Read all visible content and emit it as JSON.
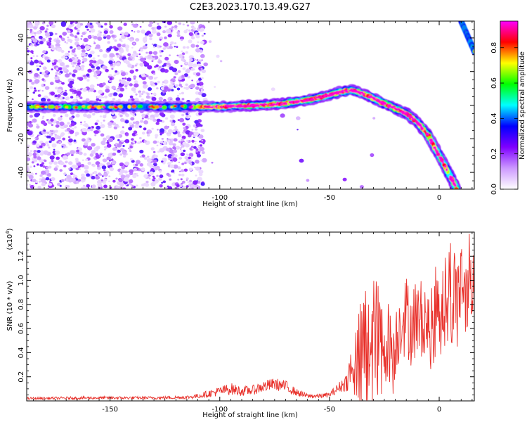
{
  "title": "C2E3.2023.170.13.49.G27",
  "chart_data": [
    {
      "type": "heatmap",
      "xlabel": "Height of straight line (km)",
      "ylabel": "Frequency (Hz)",
      "xlim": [
        -188,
        16
      ],
      "ylim": [
        -50,
        50
      ],
      "xticks": [
        -150,
        -100,
        -50,
        0
      ],
      "yticks": [
        -40,
        -20,
        0,
        20,
        40
      ],
      "colorbar": {
        "label": "Normalized spectral amplitude",
        "range": [
          0.0,
          0.95
        ],
        "ticks": [
          0.0,
          0.2,
          0.4,
          0.6,
          0.8
        ],
        "colormap": [
          "#ffffff",
          "#cc99ff",
          "#7f00ff",
          "#0000ff",
          "#00ffff",
          "#00ff00",
          "#ffff00",
          "#ff0000",
          "#ff00ff"
        ]
      },
      "signal_track": {
        "x": [
          -188,
          -175,
          -160,
          -140,
          -120,
          -110,
          -100,
          -90,
          -80,
          -70,
          -60,
          -50,
          -45,
          -40,
          -35,
          -30,
          -25,
          -20,
          -15,
          -10,
          -5,
          0,
          5,
          8
        ],
        "freq": [
          -1,
          -1,
          -1,
          -1,
          -1,
          -1,
          -1,
          -0.5,
          0,
          1,
          3,
          6,
          8,
          9,
          7,
          4,
          1,
          -2,
          -5,
          -10,
          -18,
          -30,
          -42,
          -50
        ]
      },
      "upper_track": {
        "x": [
          10,
          16
        ],
        "freq": [
          50,
          32
        ]
      }
    },
    {
      "type": "line",
      "xlabel": "Height of straight line (km)",
      "ylabel": "SNR (10 * v/v)",
      "yexponent": "(x10",
      "yexponent_power": "4",
      "yexponent_close": ")",
      "xlim": [
        -188,
        16
      ],
      "ylim": [
        0,
        1.4
      ],
      "xticks": [
        -150,
        -100,
        -50,
        0
      ],
      "yticks": [
        0.2,
        0.4,
        0.6,
        0.8,
        1.0,
        1.2
      ],
      "series_color": "#e8302a",
      "envelope": {
        "x": [
          -188,
          -160,
          -130,
          -115,
          -110,
          -105,
          -100,
          -95,
          -90,
          -85,
          -80,
          -75,
          -70,
          -65,
          -60,
          -55,
          -50,
          -45,
          -42,
          -40,
          -37,
          -35,
          -33,
          -31,
          -29,
          -27,
          -25,
          -23,
          -21,
          -19,
          -17,
          -15,
          -13,
          -11,
          -9,
          -7,
          -5,
          -3,
          -1,
          1,
          3,
          5,
          7,
          9,
          11,
          13,
          15
        ],
        "mean": [
          0.02,
          0.025,
          0.025,
          0.03,
          0.04,
          0.06,
          0.08,
          0.1,
          0.08,
          0.09,
          0.12,
          0.14,
          0.12,
          0.07,
          0.04,
          0.04,
          0.05,
          0.12,
          0.16,
          0.3,
          0.4,
          0.45,
          0.5,
          0.55,
          0.6,
          0.52,
          0.45,
          0.5,
          0.42,
          0.55,
          0.7,
          0.75,
          0.65,
          0.72,
          0.68,
          0.78,
          0.6,
          0.7,
          0.85,
          0.8,
          0.9,
          1.0,
          0.9,
          0.95,
          1.0,
          1.05,
          1.1
        ],
        "amp": [
          0.01,
          0.012,
          0.012,
          0.015,
          0.02,
          0.03,
          0.04,
          0.05,
          0.04,
          0.04,
          0.05,
          0.05,
          0.05,
          0.03,
          0.02,
          0.02,
          0.02,
          0.05,
          0.08,
          0.2,
          0.3,
          0.5,
          0.55,
          0.5,
          0.45,
          0.4,
          0.3,
          0.35,
          0.3,
          0.3,
          0.3,
          0.3,
          0.3,
          0.3,
          0.3,
          0.3,
          0.3,
          0.35,
          0.35,
          0.35,
          0.35,
          0.4,
          0.4,
          0.4,
          0.4,
          0.35,
          0.3
        ]
      }
    }
  ]
}
